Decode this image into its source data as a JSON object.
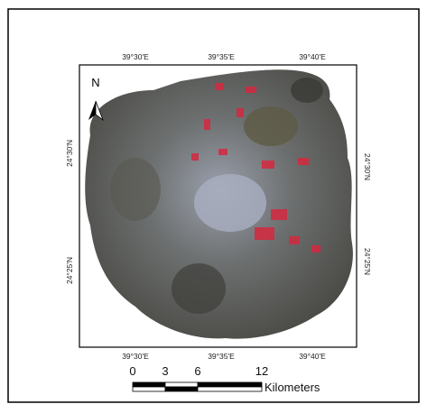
{
  "map": {
    "top_labels": [
      "39°30'E",
      "39°35'E",
      "39°40'E"
    ],
    "bottom_labels": [
      "39°30'E",
      "39°35'E",
      "39°40'E"
    ],
    "left_labels": [
      "24°30'N",
      "24°25'N"
    ],
    "right_labels": [
      "24°30'N",
      "24°25'N"
    ],
    "north": "N",
    "scale_bar": {
      "labels": [
        "0",
        "3",
        "6",
        "12"
      ],
      "unit": "Kilometers"
    }
  }
}
